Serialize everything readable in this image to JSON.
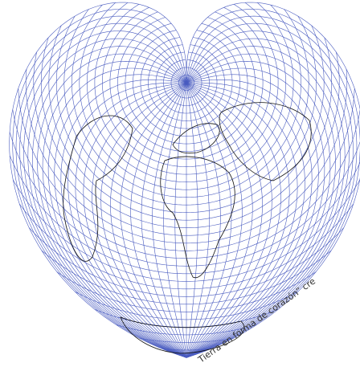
{
  "caption": "Tierra en forma de corazón” cre"
}
